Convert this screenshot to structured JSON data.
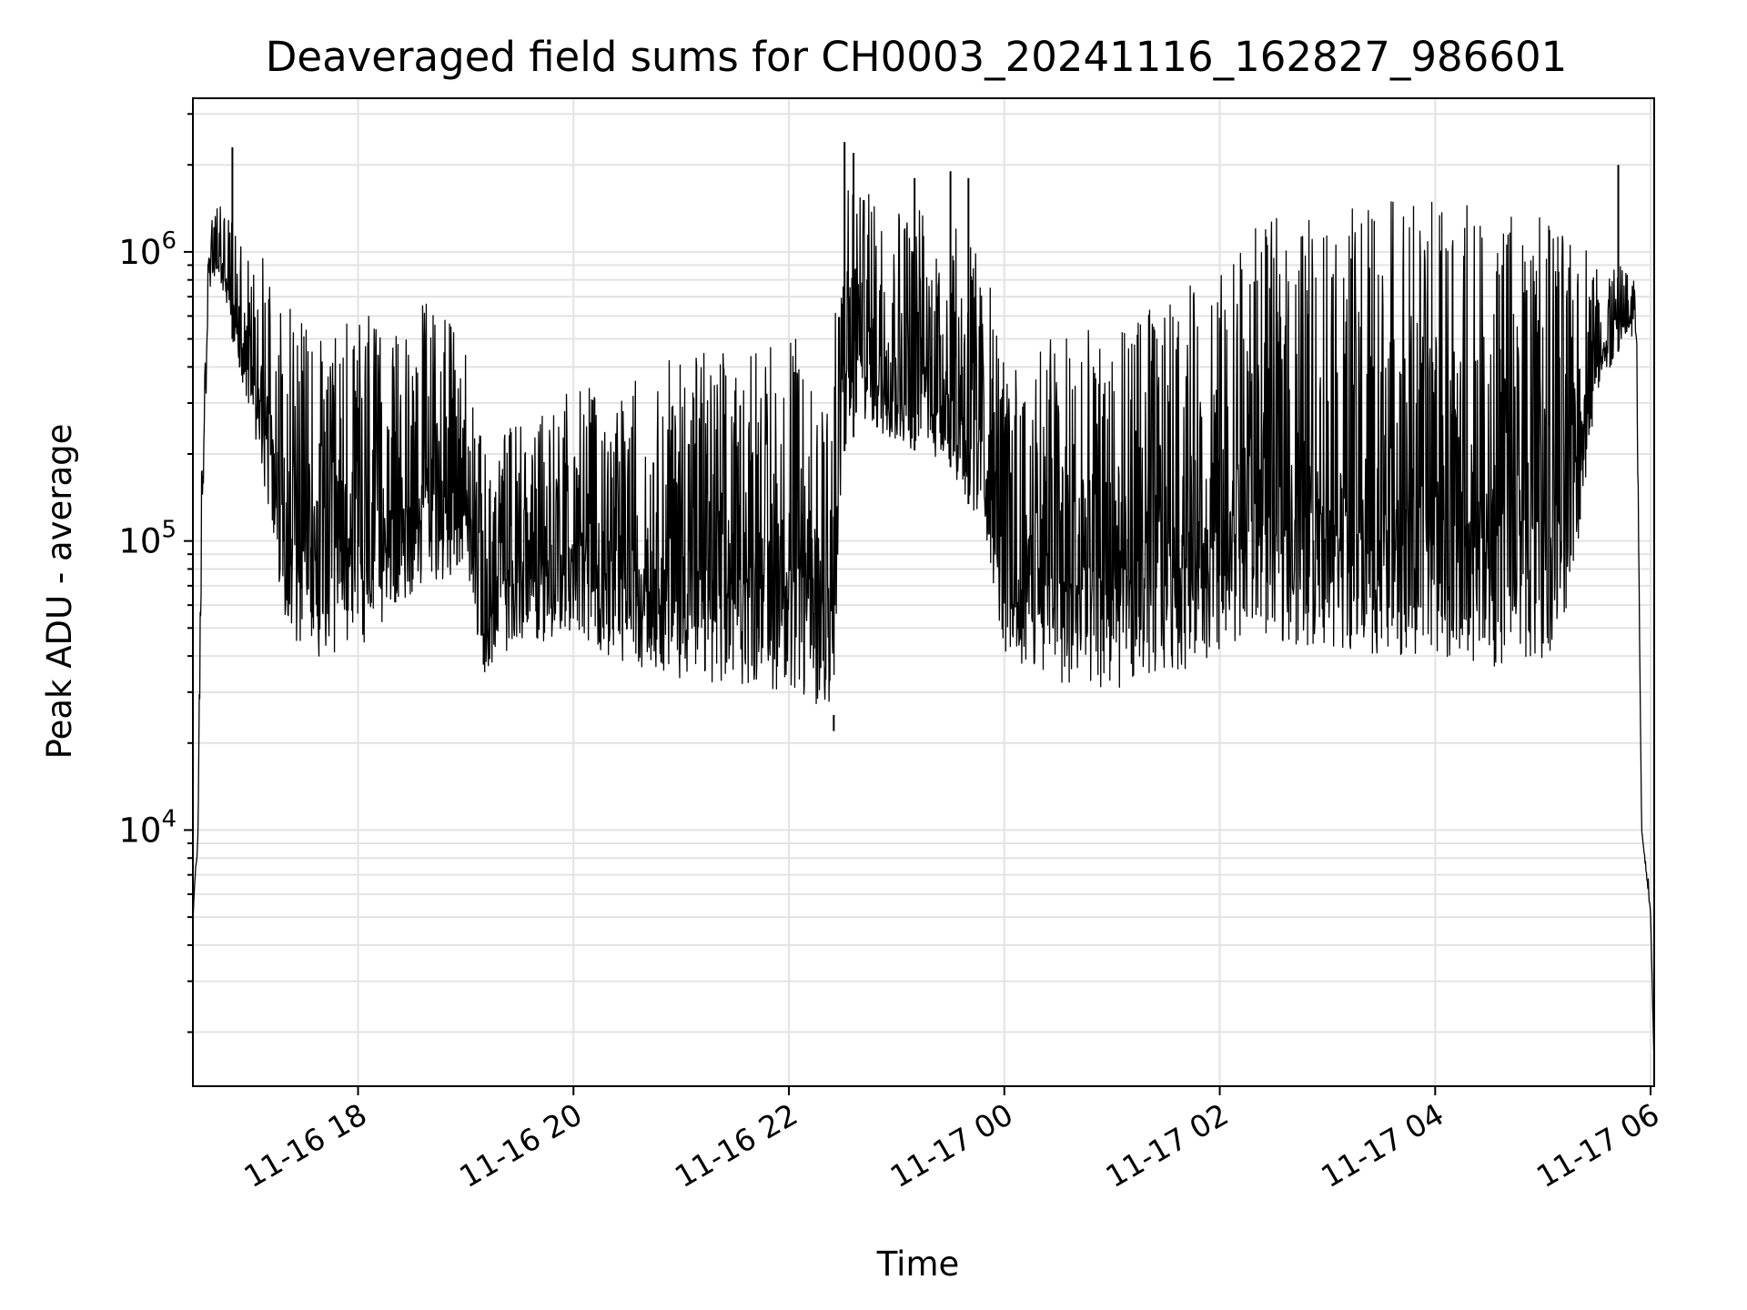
{
  "chart_data": {
    "type": "line",
    "title": "Deaveraged field sums for CH0003_20241116_162827_986601",
    "xlabel": "Time",
    "ylabel": "Peak ADU - average",
    "yscale": "log",
    "ylim": [
      1300,
      3400000
    ],
    "xlim": [
      "2024-11-16 16:28",
      "2024-11-17 06:02"
    ],
    "grid": "major and minor, light gray",
    "line_color": "#000000",
    "x_ticks": [
      "11-16 18",
      "11-16 20",
      "11-16 22",
      "11-17 00",
      "11-17 02",
      "11-17 04",
      "11-17 06"
    ],
    "x_tick_times": [
      "2024-11-16 18:00",
      "2024-11-16 20:00",
      "2024-11-16 22:00",
      "2024-11-17 00:00",
      "2024-11-17 02:00",
      "2024-11-17 04:00",
      "2024-11-17 06:00"
    ],
    "y_ticks": [
      {
        "base": "10",
        "exp": "4",
        "value": 10000
      },
      {
        "base": "10",
        "exp": "5",
        "value": 100000
      },
      {
        "base": "10",
        "exp": "6",
        "value": 1000000
      }
    ],
    "series": [
      {
        "time": [
          "2024-11-16 16:28",
          "2024-11-16 16:29",
          "2024-11-16 16:31",
          "2024-11-16 16:33",
          "2024-11-16 16:37",
          "2024-11-16 16:42",
          "2024-11-16 16:50",
          "2024-11-16 17:05",
          "2024-11-16 17:20",
          "2024-11-16 17:40",
          "2024-11-16 18:00",
          "2024-11-16 18:20",
          "2024-11-16 18:40",
          "2024-11-16 19:00",
          "2024-11-16 19:10",
          "2024-11-16 19:30",
          "2024-11-16 20:00",
          "2024-11-16 20:30",
          "2024-11-16 21:00",
          "2024-11-16 21:30",
          "2024-11-16 22:00",
          "2024-11-16 22:25",
          "2024-11-16 22:30",
          "2024-11-16 22:40",
          "2024-11-16 23:00",
          "2024-11-16 23:30",
          "2024-11-16 23:50",
          "2024-11-17 00:00",
          "2024-11-17 00:30",
          "2024-11-17 01:00",
          "2024-11-17 01:30",
          "2024-11-17 02:00",
          "2024-11-17 02:15",
          "2024-11-17 02:30",
          "2024-11-17 03:00",
          "2024-11-17 03:30",
          "2024-11-17 04:00",
          "2024-11-17 04:30",
          "2024-11-17 05:00",
          "2024-11-17 05:15",
          "2024-11-17 05:30",
          "2024-11-17 05:45",
          "2024-11-17 05:52",
          "2024-11-17 05:55",
          "2024-11-17 06:00",
          "2024-11-17 06:02"
        ],
        "low": [
          4500,
          6500,
          9000,
          100000,
          700000,
          850000,
          500000,
          200000,
          50000,
          35000,
          40000,
          60000,
          70000,
          80000,
          35000,
          45000,
          45000,
          38000,
          33000,
          32000,
          30000,
          25000,
          200000,
          250000,
          220000,
          180000,
          100000,
          40000,
          32000,
          30000,
          35000,
          38000,
          50000,
          45000,
          42000,
          40000,
          38000,
          37000,
          36000,
          60000,
          300000,
          500000,
          500000,
          10000,
          5000,
          1500
        ],
        "high": [
          5000,
          7000,
          12000,
          300000,
          1200000,
          1500000,
          1300000,
          1000000,
          700000,
          500000,
          700000,
          500000,
          700000,
          500000,
          200000,
          300000,
          350000,
          350000,
          450000,
          450000,
          500000,
          500000,
          1600000,
          1800000,
          1500000,
          1300000,
          900000,
          400000,
          600000,
          500000,
          700000,
          900000,
          1200000,
          1300000,
          1400000,
          1500000,
          1500000,
          1500000,
          1400000,
          1200000,
          1000000,
          900000,
          800000,
          10000,
          6000,
          1500
        ],
        "spikes": [
          {
            "time": "2024-11-16 16:50",
            "value": 2300000
          },
          {
            "time": "2024-11-16 22:31",
            "value": 2400000
          },
          {
            "time": "2024-11-16 22:36",
            "value": 2200000
          },
          {
            "time": "2024-11-16 23:10",
            "value": 1800000
          },
          {
            "time": "2024-11-16 23:30",
            "value": 1900000
          },
          {
            "time": "2024-11-16 23:40",
            "value": 1800000
          },
          {
            "time": "2024-11-17 05:42",
            "value": 2000000
          },
          {
            "time": "2024-11-16 22:25",
            "value": 22000
          }
        ]
      }
    ]
  }
}
